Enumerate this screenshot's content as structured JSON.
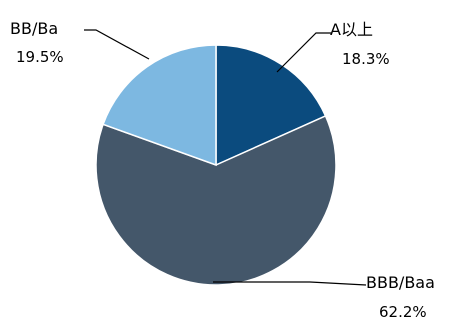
{
  "chart_data": {
    "type": "pie",
    "title": "",
    "slices": [
      {
        "label": "A以上",
        "percent_label": "18.3%",
        "value": 18.3,
        "color": "#0b4b7e"
      },
      {
        "label": "BBB/Baa",
        "percent_label": "62.2%",
        "value": 62.2,
        "color": "#44576a"
      },
      {
        "label": "BB/Ba",
        "percent_label": "19.5%",
        "value": 19.5,
        "color": "#7db8e1"
      }
    ],
    "legend": "none",
    "start_angle_deg": 0,
    "direction": "clockwise"
  }
}
